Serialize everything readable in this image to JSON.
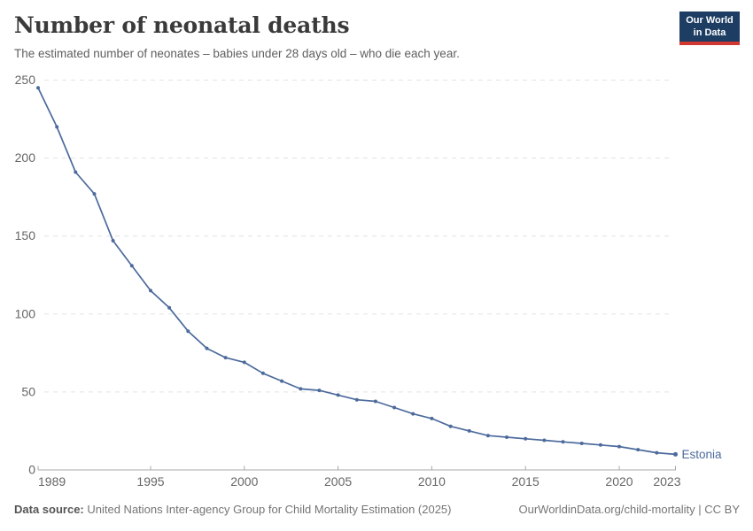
{
  "header": {
    "title": "Number of neonatal deaths",
    "subtitle": "The estimated number of neonates – babies under 28 days old – who die each year.",
    "logo_line1": "Our World",
    "logo_line2": "in Data"
  },
  "chart_data": {
    "type": "line",
    "title": "Number of neonatal deaths",
    "series": [
      {
        "name": "Estonia",
        "x": [
          1989,
          1990,
          1991,
          1992,
          1993,
          1994,
          1995,
          1996,
          1997,
          1998,
          1999,
          2000,
          2001,
          2002,
          2003,
          2004,
          2005,
          2006,
          2007,
          2008,
          2009,
          2010,
          2011,
          2012,
          2013,
          2014,
          2015,
          2016,
          2017,
          2018,
          2019,
          2020,
          2021,
          2022,
          2023
        ],
        "values": [
          245,
          220,
          191,
          177,
          147,
          131,
          115,
          104,
          89,
          78,
          72,
          69,
          62,
          57,
          52,
          51,
          48,
          45,
          44,
          40,
          36,
          33,
          28,
          25,
          22,
          21,
          20,
          19,
          18,
          17,
          16,
          15,
          13,
          11,
          10
        ]
      }
    ],
    "xlabel": "",
    "ylabel": "",
    "xlim": [
      1989,
      2023
    ],
    "ylim": [
      0,
      250
    ],
    "x_ticks": [
      1989,
      1995,
      2000,
      2005,
      2010,
      2015,
      2020,
      2023
    ],
    "y_ticks": [
      0,
      50,
      100,
      150,
      200,
      250
    ],
    "grid": "horizontal-dashed",
    "legend_position": "end-of-line",
    "line_color": "#4C6A9C",
    "end_label": "Estonia"
  },
  "footer": {
    "source_label": "Data source:",
    "source_text": " United Nations Inter-agency Group for Child Mortality Estimation (2025)",
    "link_text": "OurWorldinData.org/child-mortality | CC BY"
  },
  "colors": {
    "line": "#4C6A9C",
    "gridline": "#e3e3e3",
    "axis": "#a8a8a8",
    "tick_label": "#666666",
    "title": "#3a3a3a",
    "subtitle": "#5f5f5f",
    "footer": "#757575",
    "logo_bg": "#1d3d63",
    "logo_accent": "#d13832"
  }
}
